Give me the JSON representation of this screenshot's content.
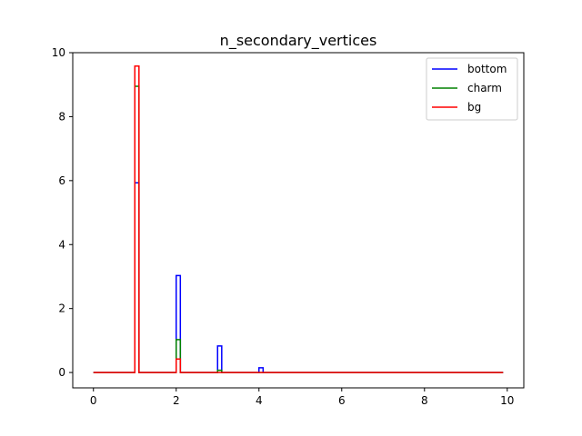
{
  "chart_data": {
    "type": "line",
    "drawstyle": "steps",
    "title": "n_secondary_vertices",
    "xlabel": "",
    "ylabel": "",
    "xlim": [
      -0.5,
      10.4
    ],
    "ylim": [
      -0.48,
      10.0
    ],
    "xticks": [
      "0",
      "2",
      "4",
      "6",
      "8",
      "10"
    ],
    "yticks": [
      "0",
      "2",
      "4",
      "6",
      "8",
      "10"
    ],
    "grid": false,
    "legend": "top-right",
    "bin_edges": [
      0,
      1,
      1.1,
      2,
      2.1,
      3,
      3.1,
      4,
      4.1,
      9.9
    ],
    "series": [
      {
        "name": "bottom",
        "color": "#0000ff",
        "values": [
          0,
          5.93,
          0,
          3.03,
          0,
          0.83,
          0,
          0.15,
          0
        ]
      },
      {
        "name": "charm",
        "color": "#008000",
        "values": [
          0,
          8.95,
          0,
          1.03,
          0,
          0.07,
          0,
          0.0,
          0
        ]
      },
      {
        "name": "bg",
        "color": "#ff0000",
        "values": [
          0,
          9.58,
          0,
          0.42,
          0,
          0.0,
          0,
          0.0,
          0
        ]
      }
    ]
  }
}
